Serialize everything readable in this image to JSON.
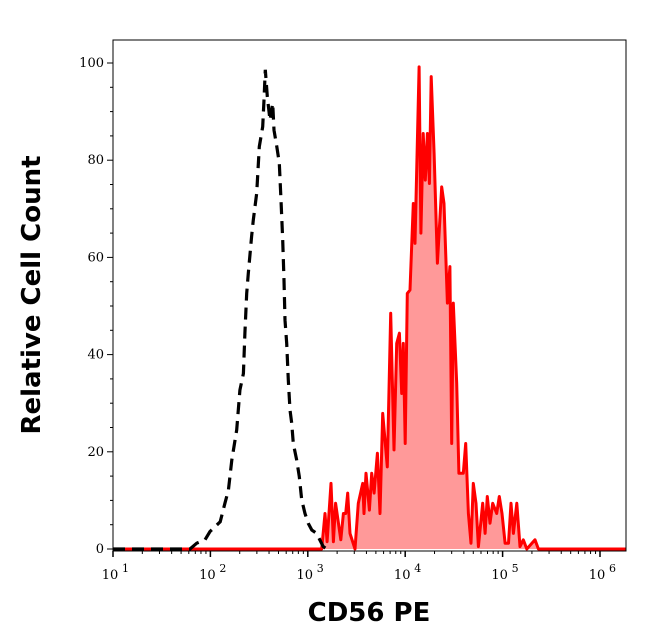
{
  "chart_data": {
    "type": "area",
    "title": "",
    "xlabel": "CD56 PE",
    "ylabel": "Relative Cell Count",
    "x_scale": "log",
    "xlim": [
      10,
      1860000
    ],
    "ylim": [
      -1,
      105
    ],
    "x_ticks": [
      {
        "base": "10",
        "exp": "1"
      },
      {
        "base": "10",
        "exp": "2"
      },
      {
        "base": "10",
        "exp": "3"
      },
      {
        "base": "10",
        "exp": "4"
      },
      {
        "base": "10",
        "exp": "5"
      },
      {
        "base": "10",
        "exp": "6"
      }
    ],
    "y_ticks": [
      "0",
      "20",
      "40",
      "60",
      "80",
      "100"
    ],
    "grid": false,
    "colors": {
      "stained_line": "#ff0000",
      "stained_fill": "#ff9999",
      "control_line": "#000000"
    },
    "series": [
      {
        "style": "dashed-line",
        "x": [
          10,
          61.8,
          72.3,
          88.1,
          99.1,
          126,
          141,
          153,
          166,
          186,
          201,
          218,
          226,
          236,
          245,
          265,
          276,
          299,
          318,
          344,
          355,
          366,
          384,
          409,
          436,
          450,
          480,
          510,
          531,
          552,
          570,
          584,
          607,
          631,
          656,
          684,
          710,
          769,
          818,
          865,
          935,
          1010,
          1100,
          1230,
          1440,
          1560
        ],
        "y": [
          0,
          0,
          1.2,
          1.9,
          3.6,
          5.6,
          9.4,
          12.1,
          18.3,
          24.5,
          32.7,
          36.1,
          44.4,
          52.6,
          56.7,
          64.3,
          67.7,
          73.2,
          82.8,
          86.9,
          92.4,
          98.6,
          93.1,
          88.2,
          91.7,
          86.2,
          82.8,
          79.4,
          71.8,
          63.6,
          55.3,
          47.1,
          42.3,
          34.8,
          28.6,
          25.9,
          21.7,
          18.3,
          14.9,
          10.1,
          7.3,
          5.3,
          3.9,
          3.2,
          0.5,
          0
        ]
      },
      {
        "style": "filled-area",
        "x": [
          10,
          1390,
          1500,
          1580,
          1730,
          1830,
          1930,
          2180,
          2320,
          2450,
          2570,
          2710,
          3050,
          3300,
          3660,
          3780,
          3960,
          4290,
          4530,
          4790,
          5180,
          5510,
          5870,
          6550,
          7100,
          7670,
          8180,
          8710,
          9200,
          9570,
          10000,
          10500,
          11200,
          12100,
          12600,
          13900,
          14500,
          15300,
          16100,
          16900,
          17700,
          18500,
          19800,
          21400,
          23700,
          25000,
          27100,
          28800,
          30000,
          31200,
          33800,
          35600,
          39500,
          41800,
          44500,
          47400,
          50000,
          53300,
          56400,
          62500,
          66100,
          69700,
          74300,
          79100,
          86900,
          92500,
          98600,
          106000,
          115000,
          122000,
          129000,
          140000,
          151000,
          163000,
          177000,
          215000,
          233000,
          1860000
        ],
        "y": [
          0,
          0,
          7.3,
          1.5,
          13.5,
          1.5,
          9.4,
          1.9,
          7.3,
          7.3,
          11.5,
          3.2,
          0,
          9.4,
          13.5,
          7.3,
          15.6,
          8.0,
          15.6,
          11.5,
          19.7,
          7.3,
          27.9,
          16.9,
          48.5,
          20.4,
          42.3,
          44.4,
          32.0,
          42.3,
          21.7,
          52.6,
          53.3,
          71.1,
          62.9,
          99.2,
          65.0,
          85.5,
          75.9,
          85.5,
          75.2,
          97.2,
          81.4,
          58.8,
          74.5,
          71.1,
          50.6,
          58.1,
          21.7,
          50.6,
          34.1,
          15.6,
          15.6,
          21.7,
          7.3,
          1.2,
          13.5,
          9.4,
          0.5,
          9.4,
          3.2,
          10.8,
          5.3,
          9.4,
          7.3,
          10.8,
          7.3,
          1.2,
          1.2,
          9.4,
          3.2,
          9.4,
          0.5,
          1.9,
          0,
          1.9,
          0,
          0
        ]
      }
    ]
  }
}
